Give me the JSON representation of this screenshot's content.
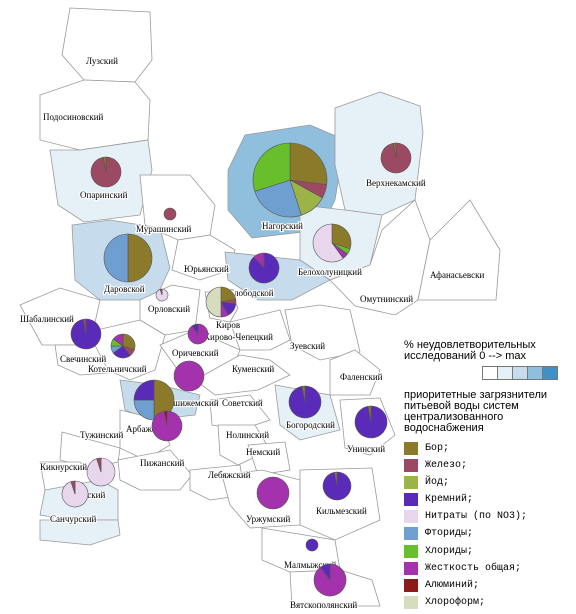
{
  "regions": [
    {
      "name": "Лузский",
      "level": 0
    },
    {
      "name": "Подосиновский",
      "level": 0
    },
    {
      "name": "Опаринский",
      "level": 1
    },
    {
      "name": "Мурашинский",
      "level": 0
    },
    {
      "name": "Нагорский",
      "level": 3
    },
    {
      "name": "Верхнекамский",
      "level": 1
    },
    {
      "name": "Даровской",
      "level": 2
    },
    {
      "name": "Юрьянский",
      "level": 0
    },
    {
      "name": "Белохолуницкий",
      "level": 1
    },
    {
      "name": "Слободской",
      "level": 2
    },
    {
      "name": "Омутнинский",
      "level": 0
    },
    {
      "name": "Афанасьевски",
      "level": 0
    },
    {
      "name": "Шабалинский",
      "level": 0
    },
    {
      "name": "Орловский",
      "level": 0
    },
    {
      "name": "Свечинский",
      "level": 0
    },
    {
      "name": "Котельничский",
      "level": 0
    },
    {
      "name": "Киров",
      "level": 0
    },
    {
      "name": "Кирово-Чепецкий",
      "level": 0
    },
    {
      "name": "Зуевский",
      "level": 0
    },
    {
      "name": "Оричевский",
      "level": 0
    },
    {
      "name": "Куменский",
      "level": 0
    },
    {
      "name": "Фаленский",
      "level": 0
    },
    {
      "name": "Верхошижемский",
      "level": 2
    },
    {
      "name": "Арбажский",
      "level": 0
    },
    {
      "name": "Советский",
      "level": 0
    },
    {
      "name": "Богородский",
      "level": 1
    },
    {
      "name": "Унинский",
      "level": 0
    },
    {
      "name": "Тужинский",
      "level": 0
    },
    {
      "name": "Нолинский",
      "level": 0
    },
    {
      "name": "Немский",
      "level": 0
    },
    {
      "name": "Кикнурский",
      "level": 0
    },
    {
      "name": "Пижанский",
      "level": 0
    },
    {
      "name": "Яранский",
      "level": 1
    },
    {
      "name": "Лебяжский",
      "level": 0
    },
    {
      "name": "Санчурский",
      "level": 1
    },
    {
      "name": "Уржумский",
      "level": 0
    },
    {
      "name": "Кильмезский",
      "level": 0
    },
    {
      "name": "Малмыжский",
      "level": 0
    },
    {
      "name": "Вятскополянский",
      "level": 0
    }
  ],
  "shading": [
    "#ffffff",
    "#e6f0f7",
    "#c6dced",
    "#8fbfdd",
    "#3f8fc8"
  ],
  "legend": {
    "scale_title": "% неудовлетворительных исследований 0 --> max",
    "pollutant_title": "приоритетные загрязнители питьевой воды систем централизованного водоснабжения",
    "items": [
      {
        "label": "Бор;",
        "color": "#8b7a2a"
      },
      {
        "label": "Железо;",
        "color": "#9c4a63"
      },
      {
        "label": "Йод;",
        "color": "#9cb447"
      },
      {
        "label": "Кремний;",
        "color": "#5a2ab8"
      },
      {
        "label": "Нитраты (по NO3);",
        "color": "#e8d6ec"
      },
      {
        "label": "Фториды;",
        "color": "#6f9fd1"
      },
      {
        "label": "Хлориды;",
        "color": "#66bf2b"
      },
      {
        "label": "Жесткость общая;",
        "color": "#a332ac"
      },
      {
        "label": "Алюминий;",
        "color": "#8f1a1a"
      },
      {
        "label": "Хлороформ;",
        "color": "#d6dcbe"
      }
    ]
  },
  "pies": [
    {
      "region": "Нагорский",
      "slices": [
        {
          "pollutant": "Бор;",
          "value": 27
        },
        {
          "pollutant": "Железо;",
          "value": 6
        },
        {
          "pollutant": "Йод;",
          "value": 12
        },
        {
          "pollutant": "Фториды;",
          "value": 25
        },
        {
          "pollutant": "Хлориды;",
          "value": 30
        }
      ]
    },
    {
      "region": "Опаринский",
      "slices": [
        {
          "pollutant": "Железо;",
          "value": 97
        },
        {
          "pollutant": "Бор;",
          "value": 3
        }
      ]
    },
    {
      "region": "Верхнекамский",
      "slices": [
        {
          "pollutant": "Железо;",
          "value": 97
        },
        {
          "pollutant": "Бор;",
          "value": 3
        }
      ]
    },
    {
      "region": "Мурашинский",
      "slices": [
        {
          "pollutant": "Железо;",
          "value": 100
        }
      ]
    },
    {
      "region": "Даровской",
      "slices": [
        {
          "pollutant": "Бор;",
          "value": 50
        },
        {
          "pollutant": "Фториды;",
          "value": 50
        }
      ]
    },
    {
      "region": "Белохолуницкий",
      "slices": [
        {
          "pollutant": "Бор;",
          "value": 30
        },
        {
          "pollutant": "Хлориды;",
          "value": 5
        },
        {
          "pollutant": "Жесткость общая;",
          "value": 5
        },
        {
          "pollutant": "Нитраты (по NO3);",
          "value": 60
        }
      ]
    },
    {
      "region": "Слободской",
      "slices": [
        {
          "pollutant": "Кремний;",
          "value": 88
        },
        {
          "pollutant": "Жесткость общая;",
          "value": 12
        }
      ]
    },
    {
      "region": "Орловский",
      "slices": [
        {
          "pollutant": "Нитраты (по NO3);",
          "value": 95
        },
        {
          "pollutant": "Железо;",
          "value": 5
        }
      ]
    },
    {
      "region": "Киров",
      "slices": [
        {
          "pollutant": "Бор;",
          "value": 22
        },
        {
          "pollutant": "Железо;",
          "value": 5
        },
        {
          "pollutant": "Кремний;",
          "value": 15
        },
        {
          "pollutant": "Жесткость общая;",
          "value": 8
        },
        {
          "pollutant": "Хлороформ;",
          "value": 50
        }
      ]
    },
    {
      "region": "Свечинский",
      "slices": [
        {
          "pollutant": "Кремний;",
          "value": 97
        },
        {
          "pollutant": "Железо;",
          "value": 3
        }
      ]
    },
    {
      "region": "Котельничский",
      "slices": [
        {
          "pollutant": "Бор;",
          "value": 30
        },
        {
          "pollutant": "Железо;",
          "value": 10
        },
        {
          "pollutant": "Кремний;",
          "value": 25
        },
        {
          "pollutant": "Фториды;",
          "value": 10
        },
        {
          "pollutant": "Хлориды;",
          "value": 10
        },
        {
          "pollutant": "Жесткость общая;",
          "value": 15
        }
      ]
    },
    {
      "region": "Кирово-Чепецкий",
      "slices": [
        {
          "pollutant": "Жесткость общая;",
          "value": 90
        },
        {
          "pollutant": "Кремний;",
          "value": 10
        }
      ]
    },
    {
      "region": "Оричевский",
      "slices": [
        {
          "pollutant": "Жесткость общая;",
          "value": 100
        }
      ]
    },
    {
      "region": "Верхошижемский",
      "slices": [
        {
          "pollutant": "Бор;",
          "value": 50
        },
        {
          "pollutant": "Фториды;",
          "value": 25
        },
        {
          "pollutant": "Кремний;",
          "value": 25
        }
      ]
    },
    {
      "region": "Арбажский",
      "slices": [
        {
          "pollutant": "Жесткость общая;",
          "value": 97
        },
        {
          "pollutant": "Алюминий;",
          "value": 3
        }
      ]
    },
    {
      "region": "Богородский",
      "slices": [
        {
          "pollutant": "Кремний;",
          "value": 97
        },
        {
          "pollutant": "Бор;",
          "value": 3
        }
      ]
    },
    {
      "region": "Унинский",
      "slices": [
        {
          "pollutant": "Кремний;",
          "value": 97
        },
        {
          "pollutant": "Бор;",
          "value": 3
        }
      ]
    },
    {
      "region": "Кикнурский",
      "slices": [
        {
          "pollutant": "Нитраты (по NO3);",
          "value": 95
        },
        {
          "pollutant": "Железо;",
          "value": 5
        }
      ]
    },
    {
      "region": "Яранский",
      "slices": [
        {
          "pollutant": "Нитраты (по NO3);",
          "value": 95
        },
        {
          "pollutant": "Железо;",
          "value": 5
        }
      ]
    },
    {
      "region": "Уржумский",
      "slices": [
        {
          "pollutant": "Жесткость общая;",
          "value": 100
        }
      ]
    },
    {
      "region": "Кильмезский",
      "slices": [
        {
          "pollutant": "Кремний;",
          "value": 97
        },
        {
          "pollutant": "Бор;",
          "value": 3
        }
      ]
    },
    {
      "region": "Малмыжский",
      "slices": [
        {
          "pollutant": "Кремний;",
          "value": 100
        }
      ]
    },
    {
      "region": "Вятскополянский",
      "slices": [
        {
          "pollutant": "Жесткость общая;",
          "value": 90
        },
        {
          "pollutant": "Кремний;",
          "value": 10
        }
      ]
    }
  ]
}
